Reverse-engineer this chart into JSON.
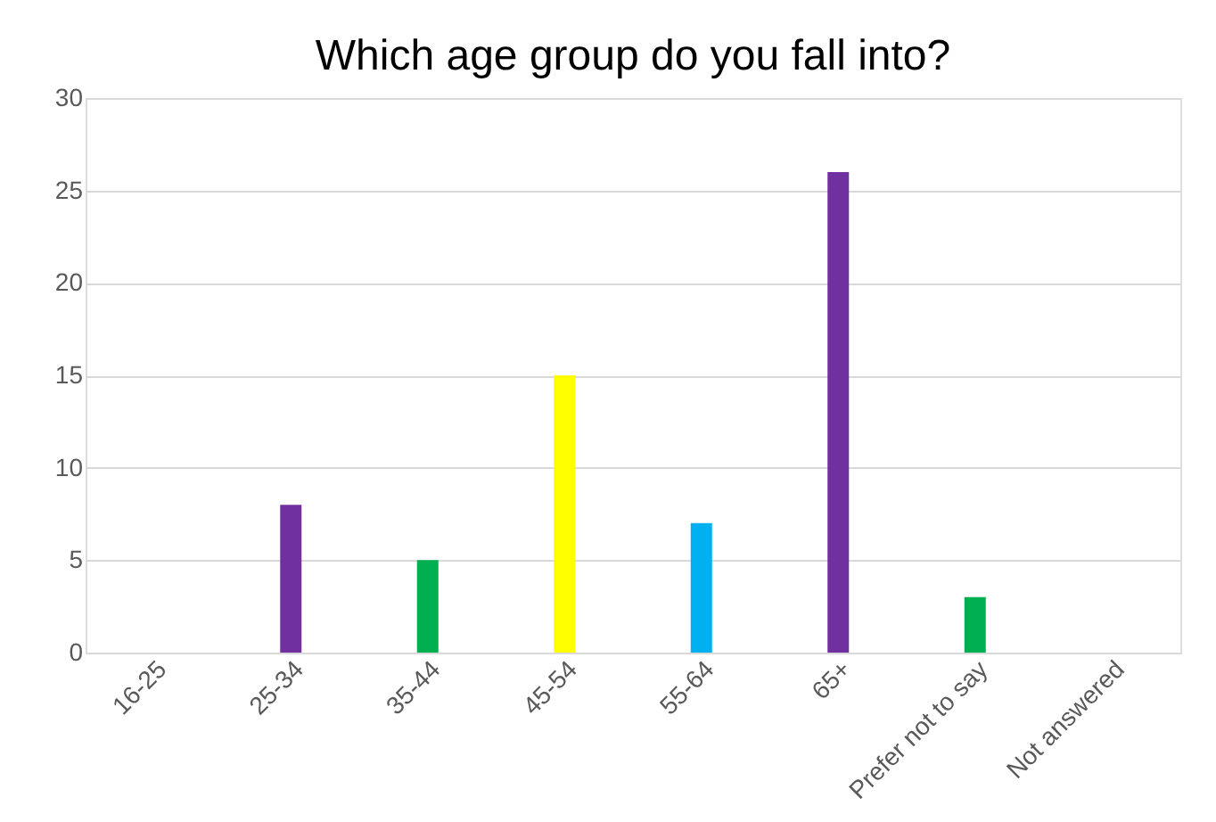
{
  "chart_data": {
    "type": "bar",
    "title": "Which age group do you fall into?",
    "categories": [
      "16-25",
      "25-34",
      "35-44",
      "45-54",
      "55-64",
      "65+",
      "Prefer not to say",
      "Not answered"
    ],
    "values": [
      0,
      8,
      5,
      15,
      7,
      26,
      3,
      0
    ],
    "colors": [
      "#7030a0",
      "#7030a0",
      "#00b050",
      "#ffff00",
      "#00b0f0",
      "#7030a0",
      "#00b050",
      "#7030a0"
    ],
    "ylim": [
      0,
      30
    ],
    "yticks": [
      0,
      5,
      10,
      15,
      20,
      25,
      30
    ],
    "grid": "y"
  }
}
